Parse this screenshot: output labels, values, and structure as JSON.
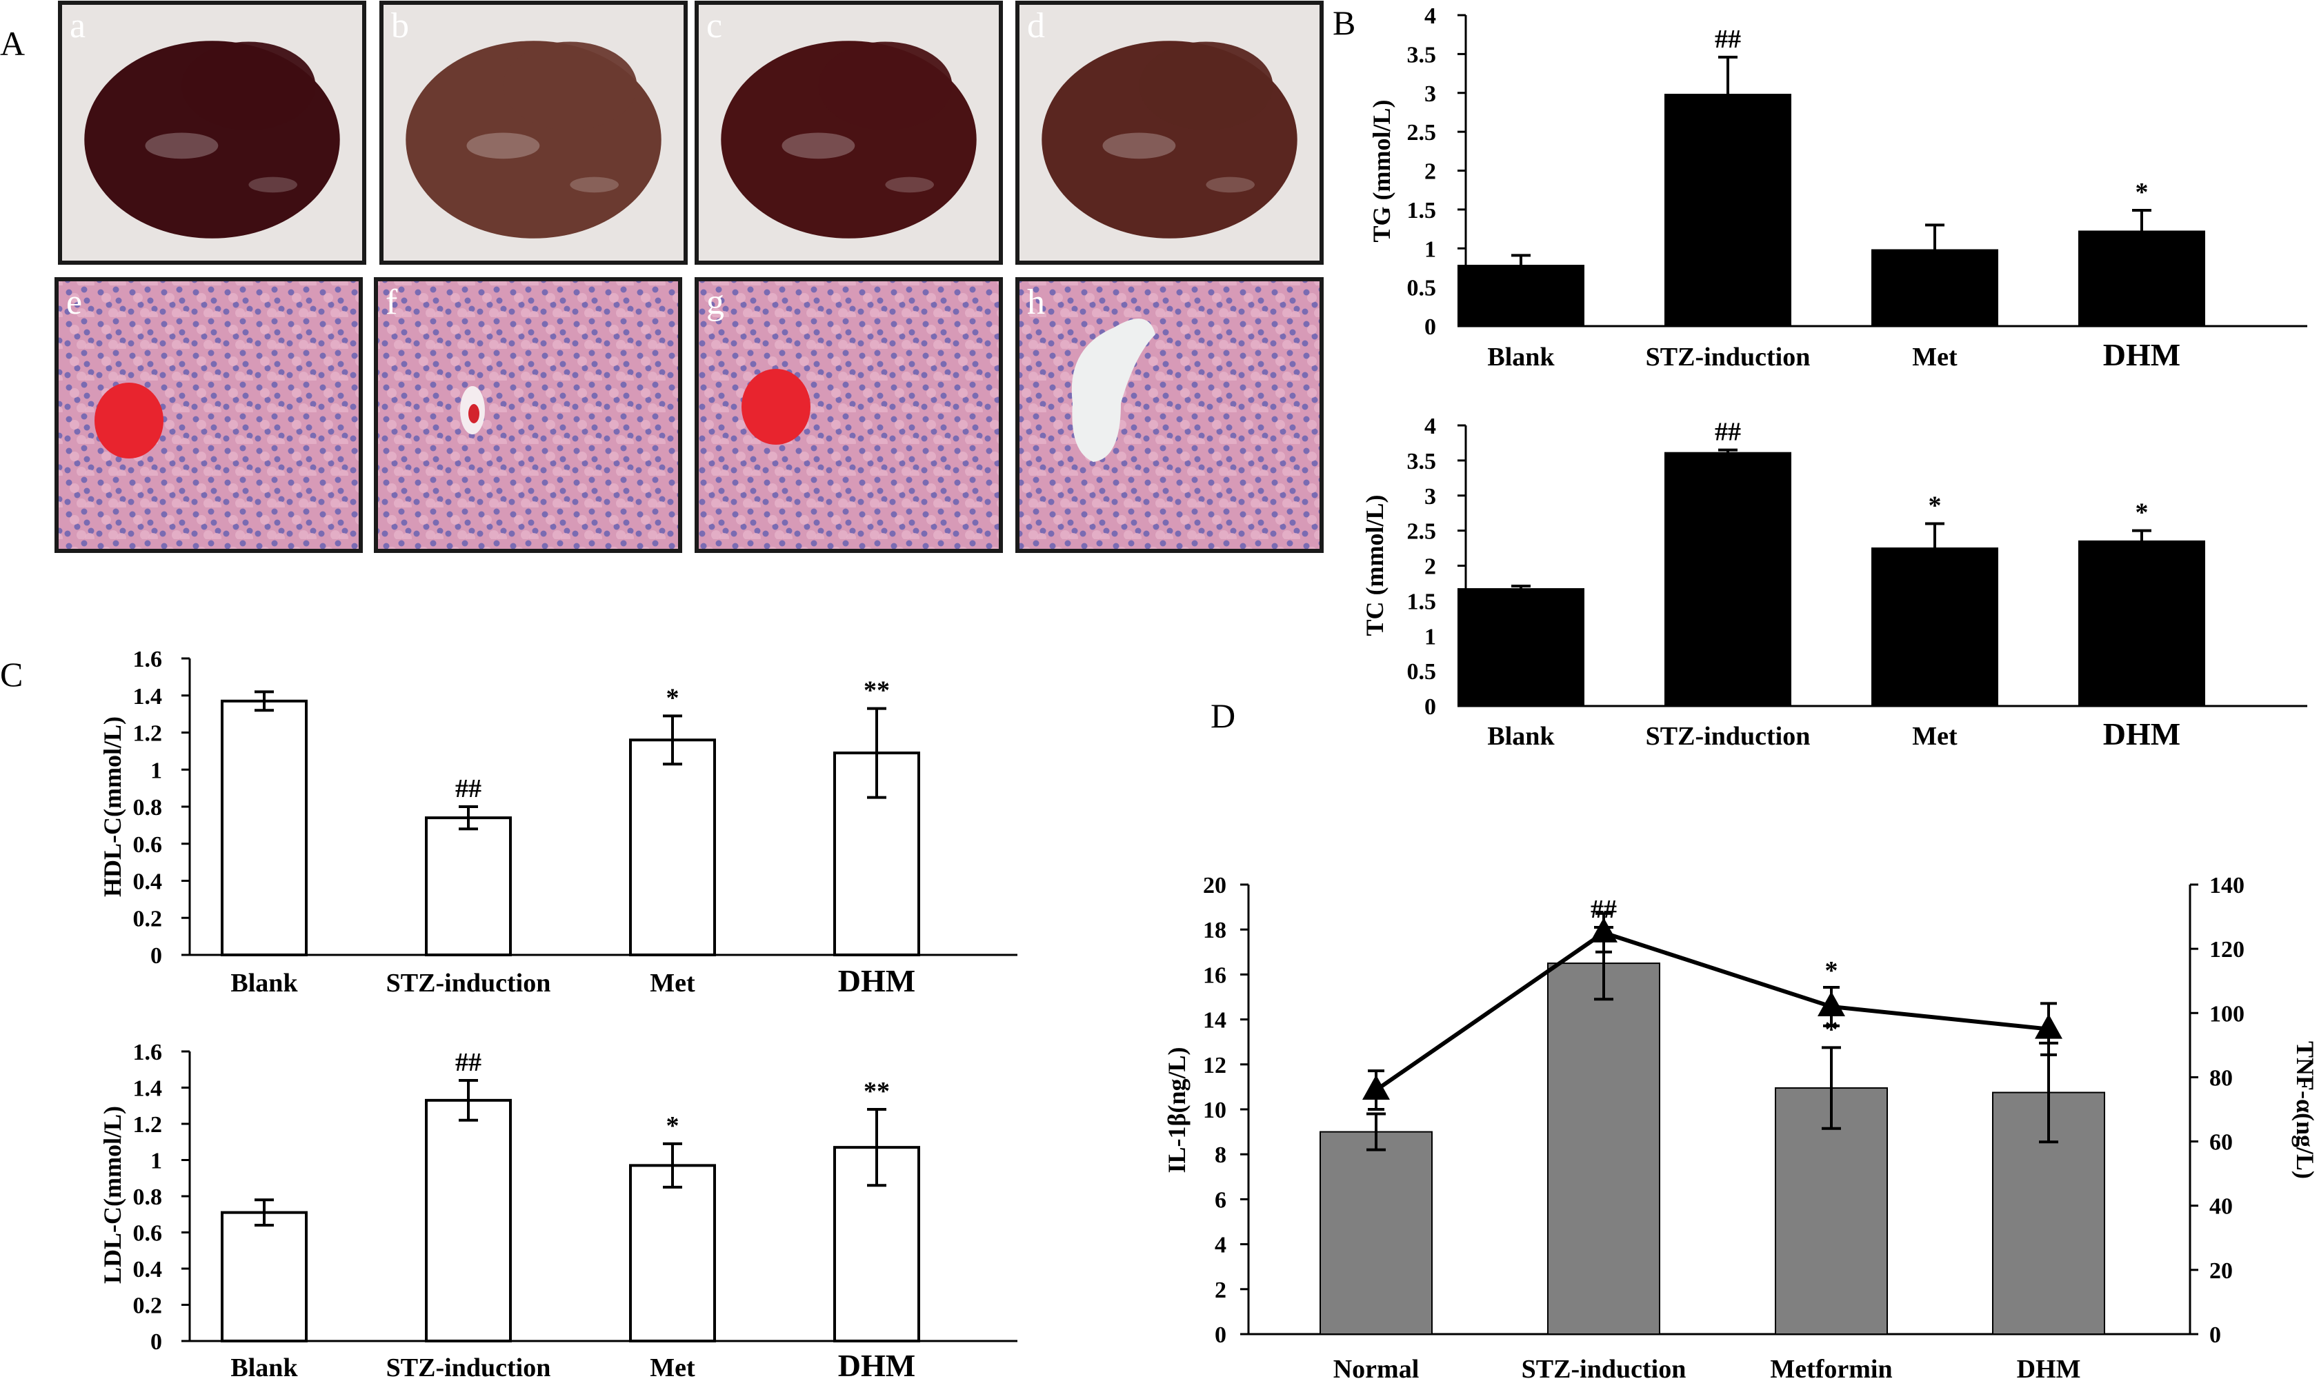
{
  "panel_labels": {
    "A": "A",
    "B": "B",
    "C": "C",
    "D": "D"
  },
  "photos": [
    {
      "letter": "a",
      "kind": "liver",
      "tone": "#3e0d12"
    },
    {
      "letter": "b",
      "kind": "liver",
      "tone": "#6b3a30"
    },
    {
      "letter": "c",
      "kind": "liver",
      "tone": "#4a1214"
    },
    {
      "letter": "d",
      "kind": "liver",
      "tone": "#5a2620"
    },
    {
      "letter": "e",
      "kind": "histology",
      "vessel": "red"
    },
    {
      "letter": "f",
      "kind": "histology",
      "vessel": "small"
    },
    {
      "letter": "g",
      "kind": "histology",
      "vessel": "red"
    },
    {
      "letter": "h",
      "kind": "histology",
      "vessel": "white"
    }
  ],
  "chart_data": [
    {
      "id": "TG",
      "type": "bar",
      "categories": [
        "Blank",
        "STZ-induction",
        "Met",
        "DHM"
      ],
      "values": [
        0.78,
        2.98,
        0.98,
        1.22
      ],
      "errors": [
        0.13,
        0.48,
        0.32,
        0.27
      ],
      "annotations": [
        "",
        "##",
        "",
        "*"
      ],
      "ylabel": "TG (mmol/L)",
      "ylim": [
        0,
        4
      ],
      "yticks": [
        "0",
        "0.5",
        "1",
        "1.5",
        "2",
        "2.5",
        "3",
        "3.5",
        "4"
      ],
      "bar_fill": "#000000"
    },
    {
      "id": "TC",
      "type": "bar",
      "categories": [
        "Blank",
        "STZ-induction",
        "Met",
        "DHM"
      ],
      "values": [
        1.67,
        3.61,
        2.25,
        2.35
      ],
      "errors": [
        0.04,
        0.04,
        0.35,
        0.15
      ],
      "annotations": [
        "",
        "##",
        "*",
        "*"
      ],
      "ylabel": "TC (mmol/L)",
      "ylim": [
        0,
        4
      ],
      "yticks": [
        "0",
        "0.5",
        "1",
        "1.5",
        "2",
        "2.5",
        "3",
        "3.5",
        "4"
      ],
      "bar_fill": "#000000"
    },
    {
      "id": "HDL",
      "type": "bar",
      "categories": [
        "Blank",
        "STZ-induction",
        "Met",
        "DHM"
      ],
      "values": [
        1.37,
        0.74,
        1.16,
        1.09
      ],
      "errors": [
        0.05,
        0.06,
        0.13,
        0.24
      ],
      "annotations": [
        "",
        "##",
        "*",
        "**"
      ],
      "ylabel": "HDL-C(mmol/L)",
      "ylim": [
        0,
        1.6
      ],
      "yticks": [
        "0",
        "0.2",
        "0.4",
        "0.6",
        "0.8",
        "1",
        "1.2",
        "1.4",
        "1.6"
      ],
      "bar_fill": "#ffffff"
    },
    {
      "id": "LDL",
      "type": "bar",
      "categories": [
        "Blank",
        "STZ-induction",
        "Met",
        "DHM"
      ],
      "values": [
        0.71,
        1.33,
        0.97,
        1.07
      ],
      "errors": [
        0.07,
        0.11,
        0.12,
        0.21
      ],
      "annotations": [
        "",
        "##",
        "*",
        "**"
      ],
      "ylabel": "LDL-C(mmol/L)",
      "ylim": [
        0,
        1.6
      ],
      "yticks": [
        "0",
        "0.2",
        "0.4",
        "0.6",
        "0.8",
        "1",
        "1.2",
        "1.4",
        "1.6"
      ],
      "bar_fill": "#ffffff"
    },
    {
      "id": "IL_TNF",
      "type": "bar",
      "categories": [
        "Normal",
        "STZ-induction",
        "Metformin",
        "DHM"
      ],
      "values": [
        9.0,
        16.5,
        10.95,
        10.75
      ],
      "errors": [
        0.8,
        1.6,
        1.8,
        2.2
      ],
      "annotations": [
        "",
        "##",
        "*",
        ""
      ],
      "ylabel": "IL-1β(ng/L)",
      "ylim": [
        0,
        20
      ],
      "yticks": [
        "0",
        "2",
        "4",
        "6",
        "8",
        "10",
        "12",
        "14",
        "16",
        "18",
        "20"
      ],
      "bar_fill": "#808080",
      "line_series": {
        "values": [
          76,
          125,
          102,
          95
        ],
        "errors": [
          6,
          6,
          6,
          8
        ],
        "annotations": [
          "",
          "",
          "*",
          ""
        ],
        "ylabel": "TNF-α(ng/L)",
        "ylim": [
          0,
          140
        ],
        "yticks": [
          "0",
          "20",
          "40",
          "60",
          "80",
          "100",
          "120",
          "140"
        ]
      }
    }
  ]
}
